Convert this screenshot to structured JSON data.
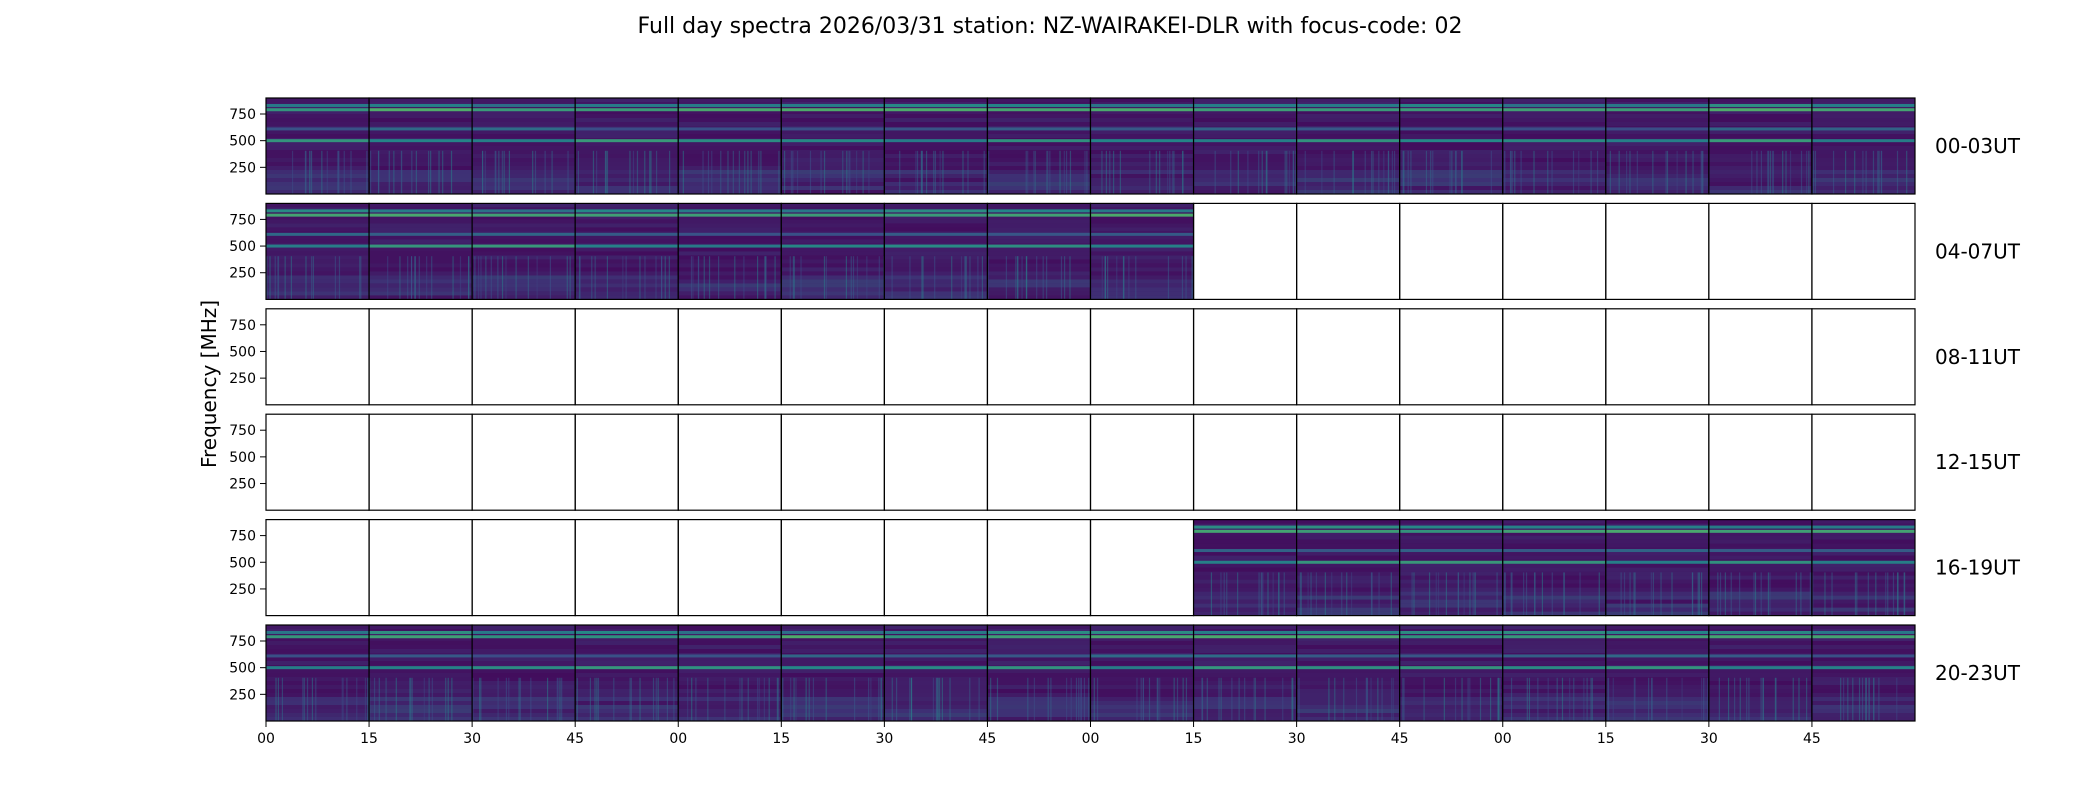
{
  "chart_data": {
    "type": "heatmap",
    "title": "Full day spectra 2026/03/31 station: NZ-WAIRAKEI-DLR with focus-code: 02",
    "ylabel": "Frequency [MHz]",
    "ylim": [
      0,
      900
    ],
    "yticks": [
      250,
      500,
      750
    ],
    "xtick_labels": [
      "00",
      "15",
      "30",
      "45",
      "00",
      "15",
      "30",
      "45",
      "00",
      "15",
      "30",
      "45",
      "00",
      "15",
      "30",
      "45"
    ],
    "panels_per_row": 16,
    "panel_minutes": 15,
    "colormap": [
      "#440154",
      "#3b528b",
      "#21918c",
      "#5ec962",
      "#fde725"
    ],
    "rows": [
      {
        "label": "00-03UT",
        "panels_with_data": [
          1,
          1,
          1,
          1,
          1,
          1,
          1,
          1,
          1,
          1,
          1,
          1,
          1,
          1,
          1,
          1
        ]
      },
      {
        "label": "04-07UT",
        "panels_with_data": [
          1,
          1,
          1,
          1,
          1,
          1,
          1,
          1,
          1,
          0,
          0,
          0,
          0,
          0,
          0,
          0
        ]
      },
      {
        "label": "08-11UT",
        "panels_with_data": [
          0,
          0,
          0,
          0,
          0,
          0,
          0,
          0,
          0,
          0,
          0,
          0,
          0,
          0,
          0,
          0
        ]
      },
      {
        "label": "12-15UT",
        "panels_with_data": [
          0,
          0,
          0,
          0,
          0,
          0,
          0,
          0,
          0,
          0,
          0,
          0,
          0,
          0,
          0,
          0
        ]
      },
      {
        "label": "16-19UT",
        "panels_with_data": [
          0,
          0,
          0,
          0,
          0,
          0,
          0,
          0,
          0,
          1,
          1,
          1,
          1,
          1,
          1,
          1
        ]
      },
      {
        "label": "20-23UT",
        "panels_with_data": [
          1,
          1,
          1,
          1,
          1,
          1,
          1,
          1,
          1,
          1,
          1,
          1,
          1,
          1,
          1,
          1
        ]
      }
    ]
  }
}
